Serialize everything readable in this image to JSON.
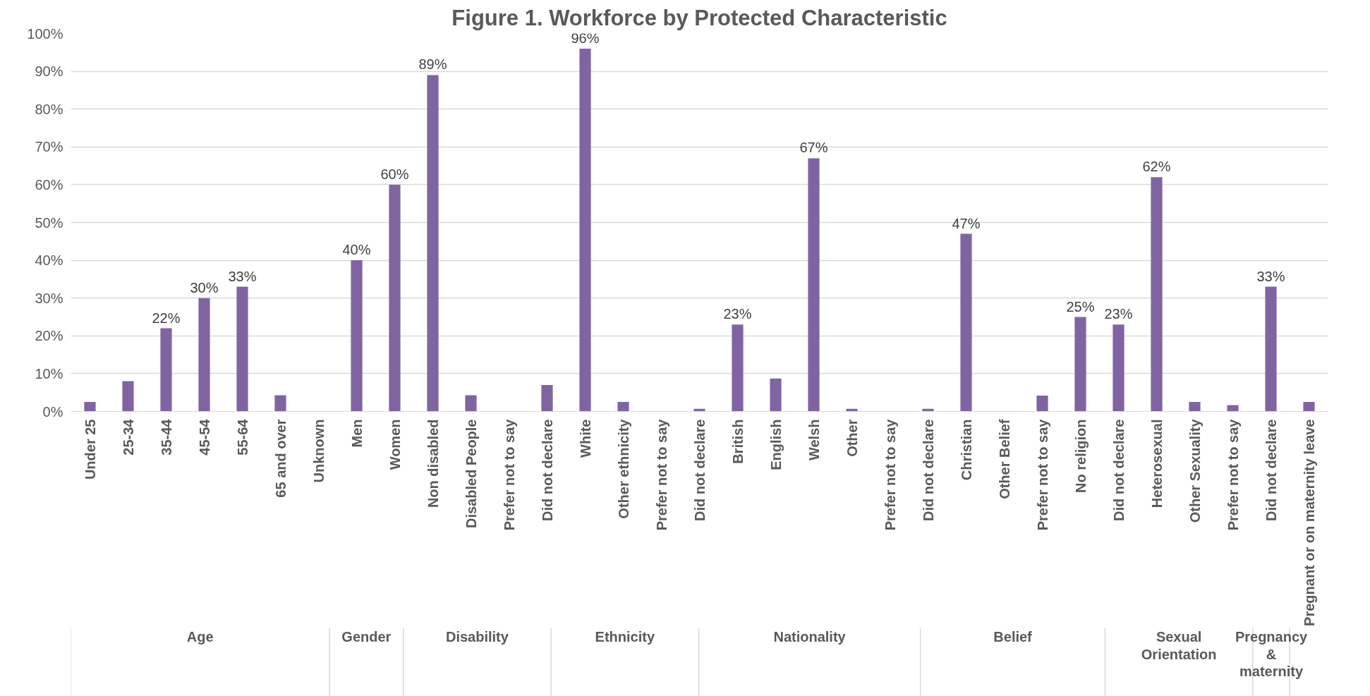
{
  "chart_data": {
    "type": "bar",
    "title": "Figure 1. Workforce by Protected Characteristic",
    "categories": [
      "Under 25",
      "25-34",
      "35-44",
      "45-54",
      "55-64",
      "65 and over",
      "Unknown",
      "Men",
      "Women",
      "Non disabled",
      "Disabled People",
      "Prefer not to say",
      "Did not declare",
      "White",
      "Other ethnicity",
      "Prefer not to say",
      "Did not declare",
      "British",
      "English",
      "Welsh",
      "Other",
      "Prefer not to say",
      "Did not declare",
      "Christian",
      "Other Belief",
      "Prefer not to say",
      "No religion",
      "Did not declare",
      "Heterosexual",
      "Other Sexuality",
      "Prefer not to say",
      "Did not declare",
      "Pregnant or on maternity leave"
    ],
    "series": [
      {
        "color": "#8064a2",
        "values": [
          2.5,
          8,
          22,
          30,
          33,
          4.3,
          0,
          null,
          null,
          null,
          null,
          null,
          null,
          null,
          null,
          null,
          null,
          null,
          null,
          null,
          null,
          null,
          null,
          null,
          null,
          null,
          null,
          null,
          null,
          null,
          null,
          null,
          null
        ],
        "value_labels": [
          null,
          null,
          "22%",
          "30%",
          "33%",
          null,
          null,
          null,
          null,
          null,
          null,
          null,
          null,
          null,
          null,
          null,
          null,
          null,
          null,
          null,
          null,
          null,
          null,
          null,
          null,
          null,
          null,
          null,
          null,
          null,
          null,
          null,
          null
        ]
      },
      {
        "color": "#8064a2",
        "values": [
          null,
          null,
          null,
          null,
          null,
          null,
          null,
          40,
          60,
          null,
          null,
          null,
          null,
          null,
          null,
          null,
          null,
          null,
          null,
          null,
          null,
          null,
          null,
          null,
          null,
          null,
          null,
          null,
          null,
          null,
          null,
          null,
          null
        ],
        "value_labels": [
          null,
          null,
          null,
          null,
          null,
          null,
          null,
          "40%",
          "60%",
          null,
          null,
          null,
          null,
          null,
          null,
          null,
          null,
          null,
          null,
          null,
          null,
          null,
          null,
          null,
          null,
          null,
          null,
          null,
          null,
          null,
          null,
          null,
          null
        ]
      },
      {
        "color": "#8064a2",
        "values": [
          null,
          null,
          null,
          null,
          null,
          null,
          null,
          null,
          null,
          89,
          4.3,
          0,
          7,
          null,
          null,
          null,
          null,
          null,
          null,
          null,
          null,
          null,
          null,
          null,
          null,
          null,
          null,
          null,
          null,
          null,
          null,
          null,
          null
        ],
        "value_labels": [
          null,
          null,
          null,
          null,
          null,
          null,
          null,
          null,
          null,
          "89%",
          null,
          null,
          null,
          null,
          null,
          null,
          null,
          null,
          null,
          null,
          null,
          null,
          null,
          null,
          null,
          null,
          null,
          null,
          null,
          null,
          null,
          null,
          null
        ]
      },
      {
        "color": "#8064a2",
        "values": [
          null,
          null,
          null,
          null,
          null,
          null,
          null,
          null,
          null,
          null,
          null,
          null,
          null,
          96,
          2.5,
          0,
          0.7,
          null,
          null,
          null,
          null,
          null,
          null,
          null,
          null,
          null,
          null,
          null,
          null,
          null,
          null,
          null,
          null
        ],
        "value_labels": [
          null,
          null,
          null,
          null,
          null,
          null,
          null,
          null,
          null,
          null,
          null,
          null,
          null,
          "96%",
          null,
          null,
          null,
          null,
          null,
          null,
          null,
          null,
          null,
          null,
          null,
          null,
          null,
          null,
          null,
          null,
          null,
          null,
          null
        ]
      },
      {
        "color": "#8064a2",
        "values": [
          null,
          null,
          null,
          null,
          null,
          null,
          null,
          null,
          null,
          null,
          null,
          null,
          null,
          null,
          null,
          null,
          null,
          23,
          8.7,
          67,
          0.7,
          0,
          0.7,
          null,
          null,
          null,
          null,
          null,
          null,
          null,
          null,
          null,
          null
        ],
        "value_labels": [
          null,
          null,
          null,
          null,
          null,
          null,
          null,
          null,
          null,
          null,
          null,
          null,
          null,
          null,
          null,
          null,
          null,
          "23%",
          null,
          "67%",
          null,
          null,
          null,
          null,
          null,
          null,
          null,
          null,
          null,
          null,
          null,
          null,
          null
        ]
      },
      {
        "color": "#8064a2",
        "values": [
          null,
          null,
          null,
          null,
          null,
          null,
          null,
          null,
          null,
          null,
          null,
          null,
          null,
          null,
          null,
          null,
          null,
          null,
          null,
          null,
          null,
          null,
          null,
          47,
          0,
          4.2,
          25,
          23,
          null,
          null,
          null,
          null,
          null
        ],
        "value_labels": [
          null,
          null,
          null,
          null,
          null,
          null,
          null,
          null,
          null,
          null,
          null,
          null,
          null,
          null,
          null,
          null,
          null,
          null,
          null,
          null,
          null,
          null,
          null,
          "47%",
          null,
          null,
          "25%",
          "23%",
          null,
          null,
          null,
          null,
          null
        ]
      },
      {
        "color": "#8064a2",
        "values": [
          null,
          null,
          null,
          null,
          null,
          null,
          null,
          null,
          null,
          null,
          null,
          null,
          null,
          null,
          null,
          null,
          null,
          null,
          null,
          null,
          null,
          null,
          null,
          null,
          null,
          null,
          null,
          null,
          62,
          2.5,
          1.7,
          33,
          null
        ],
        "value_labels": [
          null,
          null,
          null,
          null,
          null,
          null,
          null,
          null,
          null,
          null,
          null,
          null,
          null,
          null,
          null,
          null,
          null,
          null,
          null,
          null,
          null,
          null,
          null,
          null,
          null,
          null,
          null,
          null,
          "62%",
          null,
          null,
          "33%",
          null
        ]
      },
      {
        "color": "#8064a2",
        "values": [
          null,
          null,
          null,
          null,
          null,
          null,
          null,
          null,
          null,
          null,
          null,
          null,
          null,
          null,
          null,
          null,
          null,
          null,
          null,
          null,
          null,
          null,
          null,
          null,
          null,
          null,
          null,
          null,
          null,
          null,
          null,
          null,
          2.5
        ],
        "value_labels": [
          null,
          null,
          null,
          null,
          null,
          null,
          null,
          null,
          null,
          null,
          null,
          null,
          null,
          null,
          null,
          null,
          null,
          null,
          null,
          null,
          null,
          null,
          null,
          null,
          null,
          null,
          null,
          null,
          null,
          null,
          null,
          null,
          null
        ]
      }
    ],
    "annotations": [
      "Age",
      "Gender",
      "Disability",
      "Ethnicity",
      "Nationality",
      "Belief",
      "Sexual Orientation",
      "Pregnancy & maternity"
    ],
    "ylim": [
      0,
      100
    ],
    "yticks": [
      {
        "value": 0,
        "label": "0%"
      },
      {
        "value": 10,
        "label": "10%"
      },
      {
        "value": 20,
        "label": "20%"
      },
      {
        "value": 30,
        "label": "30%"
      },
      {
        "value": 40,
        "label": "40%"
      },
      {
        "value": 50,
        "label": "50%"
      },
      {
        "value": 60,
        "label": "60%"
      },
      {
        "value": 70,
        "label": "70%"
      },
      {
        "value": 80,
        "label": "80%"
      },
      {
        "value": 90,
        "label": "90%"
      },
      {
        "value": 100,
        "label": "100%"
      }
    ],
    "grid": "y"
  }
}
